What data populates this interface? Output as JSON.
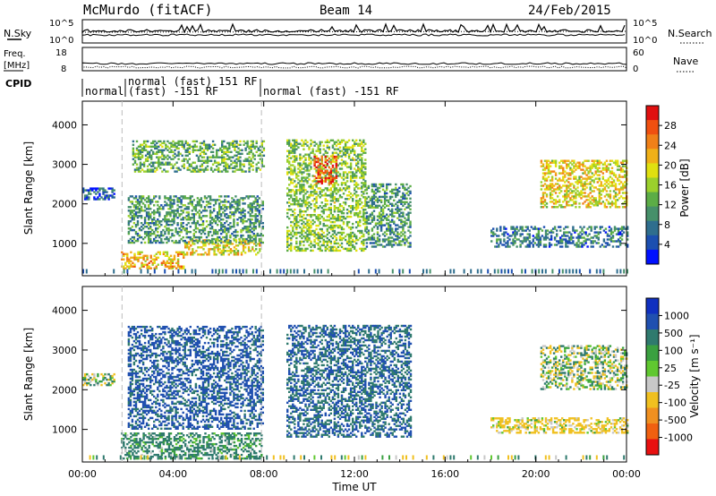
{
  "header": {
    "station": "McMurdo (fitACF)",
    "beam": "Beam 14",
    "date": "24/Feb/2015"
  },
  "noise_panel": {
    "left_label": "N.Sky",
    "right_label": "N.Search",
    "left_ticks": [
      "10^5",
      "10^0"
    ],
    "right_ticks": [
      "10^5",
      "10^0"
    ]
  },
  "freq_panel": {
    "left_label_line1": "Freq.",
    "left_label_line2": "[MHz]",
    "left_ticks": [
      "18",
      "8"
    ],
    "right_label": "Nave",
    "right_ticks": [
      "60",
      "0"
    ]
  },
  "cpid_panel": {
    "label": "CPID",
    "segments": [
      {
        "name": "normal",
        "start_ut": 0.0
      },
      {
        "name": "normal (fast) 151 RF",
        "start_ut": 1.75
      },
      {
        "name": "(fast) -151 RF",
        "start_ut": 1.75
      },
      {
        "name": "normal (fast) -151 RF",
        "start_ut": 7.9
      }
    ]
  },
  "x_axis": {
    "label": "Time UT",
    "ticks": [
      "00:00",
      "04:00",
      "08:00",
      "12:00",
      "16:00",
      "20:00",
      "00:00"
    ],
    "range_hours": [
      0,
      24
    ]
  },
  "power_panel": {
    "ylabel": "Slant Range [km]",
    "yticks": [
      "1000",
      "2000",
      "3000",
      "4000"
    ],
    "colorbar_label": "Power [dB]",
    "colorbar_ticks": [
      "4",
      "8",
      "12",
      "16",
      "20",
      "24",
      "28"
    ],
    "colorbar_colors": [
      "#0010ff",
      "#1c4fb0",
      "#2f6e8e",
      "#46906a",
      "#5cad46",
      "#9bd02c",
      "#e0e010",
      "#f0b018",
      "#f08018",
      "#f05010",
      "#e01010"
    ]
  },
  "velocity_panel": {
    "ylabel": "Slant Range [km]",
    "yticks": [
      "1000",
      "2000",
      "3000",
      "4000"
    ],
    "colorbar_label": "Velocity [m s⁻¹]",
    "colorbar_ticks": [
      "1000",
      "500",
      "100",
      "25",
      "-25",
      "-100",
      "-500",
      "-1000"
    ],
    "colorbar_colors": [
      "#1030c0",
      "#2050b0",
      "#2f7a6e",
      "#3aa040",
      "#60c830",
      "#c8c8c8",
      "#f0c020",
      "#f09020",
      "#f06010",
      "#e81010"
    ]
  },
  "chart_data": {
    "type": "heatmap",
    "title": "McMurdo (fitACF)",
    "xlabel": "Time UT",
    "ylabel": "Slant Range [km]",
    "xlim": [
      0,
      24
    ],
    "ylim": [
      180,
      4600
    ],
    "power_regions": [
      {
        "t0": 1.7,
        "t1": 4.5,
        "r0": 350,
        "r1": 800,
        "level": 20
      },
      {
        "t0": 4.5,
        "t1": 7.8,
        "r0": 700,
        "r1": 1100,
        "level": 18
      },
      {
        "t0": 2.0,
        "t1": 8.0,
        "r0": 1000,
        "r1": 2200,
        "level": 10
      },
      {
        "t0": 2.2,
        "t1": 8.0,
        "r0": 2800,
        "r1": 3600,
        "level": 12
      },
      {
        "t0": 0.0,
        "t1": 1.4,
        "r0": 2100,
        "r1": 2400,
        "level": 6
      },
      {
        "t0": 9.0,
        "t1": 12.5,
        "r0": 800,
        "r1": 3600,
        "level": 14
      },
      {
        "t0": 10.2,
        "t1": 11.2,
        "r0": 2500,
        "r1": 3200,
        "level": 26
      },
      {
        "t0": 12.5,
        "t1": 14.5,
        "r0": 900,
        "r1": 2500,
        "level": 10
      },
      {
        "t0": 18.0,
        "t1": 24.0,
        "r0": 900,
        "r1": 1400,
        "level": 8
      },
      {
        "t0": 20.2,
        "t1": 24.0,
        "r0": 1900,
        "r1": 3100,
        "level": 18
      }
    ],
    "velocity_regions": [
      {
        "t0": 1.7,
        "t1": 7.9,
        "r0": 250,
        "r1": 900,
        "velocity": 200
      },
      {
        "t0": 2.0,
        "t1": 8.0,
        "r0": 1000,
        "r1": 3600,
        "velocity": 600
      },
      {
        "t0": 9.0,
        "t1": 14.5,
        "r0": 800,
        "r1": 3600,
        "velocity": 500
      },
      {
        "t0": 0.0,
        "t1": 1.4,
        "r0": 2100,
        "r1": 2400,
        "velocity": 0
      },
      {
        "t0": 20.2,
        "t1": 24.0,
        "r0": 2000,
        "r1": 3100,
        "velocity": 0
      },
      {
        "t0": 18.0,
        "t1": 24.0,
        "r0": 900,
        "r1": 1300,
        "velocity": -200
      }
    ]
  }
}
